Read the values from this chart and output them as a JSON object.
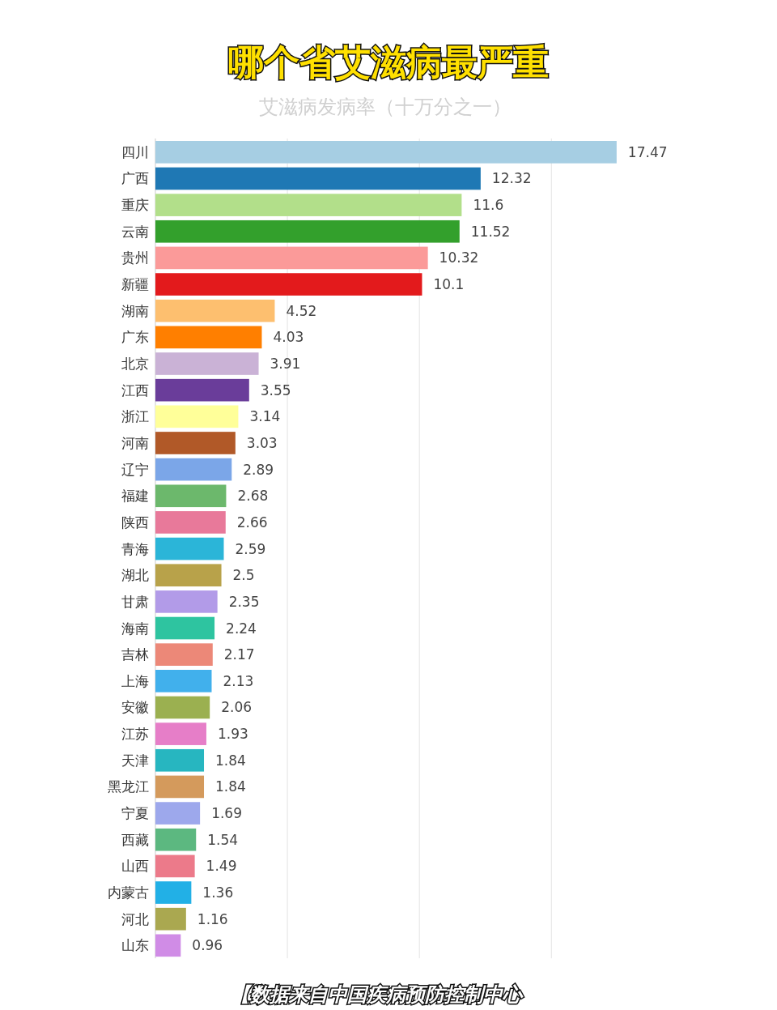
{
  "chart_data": {
    "type": "bar",
    "orientation": "horizontal",
    "title": "哪个省艾滋病最严重",
    "subtitle": "艾滋病发病率（十万分之一）",
    "categories": [
      "四川",
      "广西",
      "重庆",
      "云南",
      "贵州",
      "新疆",
      "湖南",
      "广东",
      "北京",
      "江西",
      "浙江",
      "河南",
      "辽宁",
      "福建",
      "陕西",
      "青海",
      "湖北",
      "甘肃",
      "海南",
      "吉林",
      "上海",
      "安徽",
      "江苏",
      "天津",
      "黑龙江",
      "宁夏",
      "西藏",
      "山西",
      "内蒙古",
      "河北",
      "山东"
    ],
    "values": [
      17.47,
      12.32,
      11.6,
      11.52,
      10.32,
      10.1,
      4.52,
      4.03,
      3.91,
      3.55,
      3.14,
      3.03,
      2.89,
      2.68,
      2.66,
      2.59,
      2.5,
      2.35,
      2.24,
      2.17,
      2.13,
      2.06,
      1.93,
      1.84,
      1.84,
      1.69,
      1.54,
      1.49,
      1.36,
      1.16,
      0.96
    ],
    "colors": [
      "#a6cee3",
      "#1f78b4",
      "#b2df8a",
      "#33a02c",
      "#fb9a99",
      "#e31a1c",
      "#fdbf6f",
      "#ff7f00",
      "#cab2d6",
      "#6a3d9a",
      "#ffff99",
      "#b15928",
      "#7ba6e8",
      "#6cb86c",
      "#e8799a",
      "#2bb5d8",
      "#b8a24a",
      "#b29be8",
      "#2ec4a0",
      "#ec8878",
      "#41b0ec",
      "#9bb050",
      "#e67ec8",
      "#27b6c0",
      "#d49a5c",
      "#9da8ec",
      "#5cb880",
      "#ec7a8a",
      "#22b0e6",
      "#aaa850",
      "#d08ce6"
    ],
    "data_labels": true,
    "xticks": [
      {
        "value": 5,
        "label": null
      },
      {
        "value": 10,
        "label": null
      },
      {
        "value": 15,
        "label": null
      }
    ],
    "grid": "x",
    "tick_labels": "y",
    "annotations": [
      "【数据来自中国疾病预防控制中心"
    ]
  }
}
